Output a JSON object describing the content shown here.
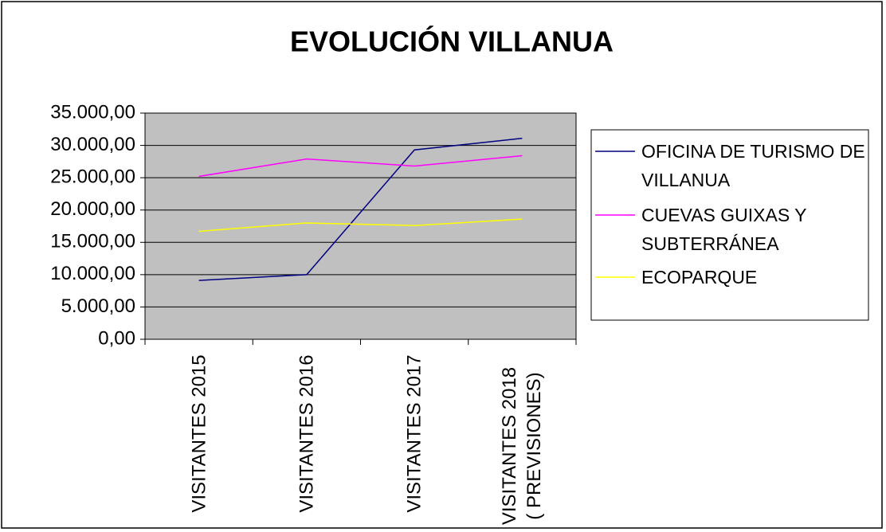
{
  "chart_data": {
    "type": "line",
    "title": "EVOLUCIÓN  VILLANUA",
    "categories": [
      "VISITANTES 2015",
      "VISITANTES 2016",
      "VISITANTES 2017",
      "VISITANTES 2018 ( PREVISIONES)"
    ],
    "series": [
      {
        "name": "OFICINA DE TURISMO DE VILLANUA",
        "color": "#000080",
        "values": [
          9100,
          10000,
          29300,
          31100
        ]
      },
      {
        "name": "CUEVAS GUIXAS Y SUBTERRÁNEA",
        "color": "#ff00ff",
        "values": [
          25200,
          27900,
          26800,
          28400
        ]
      },
      {
        "name": "ECOPARQUE",
        "color": "#ffff00",
        "values": [
          16700,
          18000,
          17600,
          18600
        ]
      }
    ],
    "ylim": [
      0,
      35000
    ],
    "yticks": [
      {
        "value": 0,
        "label": "0,00"
      },
      {
        "value": 5000,
        "label": "5.000,00"
      },
      {
        "value": 10000,
        "label": "10.000,00"
      },
      {
        "value": 15000,
        "label": "15.000,00"
      },
      {
        "value": 20000,
        "label": "20.000,00"
      },
      {
        "value": 25000,
        "label": "25.000,00"
      },
      {
        "value": 30000,
        "label": "30.000,00"
      },
      {
        "value": 35000,
        "label": "35.000,00"
      }
    ],
    "grid": true,
    "legend": "right",
    "plot_background": "#c0c0c0"
  }
}
